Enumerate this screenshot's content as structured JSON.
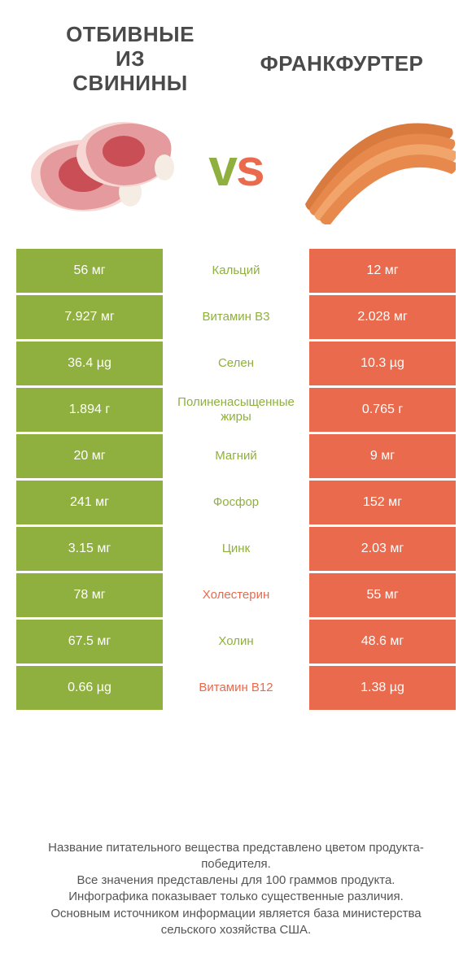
{
  "colors": {
    "green": "#8fb03e",
    "orange": "#e96a4c",
    "vs_green": "#8fb03e",
    "vs_orange": "#e96a4c",
    "pork_light": "#f6d7d4",
    "pork_pink": "#e59a9d",
    "pork_red": "#c94e55",
    "pork_bone": "#f5ede3",
    "sausage_light": "#f2a56a",
    "sausage_mid": "#e7894d",
    "sausage_dark": "#d97a3e"
  },
  "header": {
    "left_lines": [
      "ОТБИВНЫЕ",
      "ИЗ",
      "СВИНИНЫ"
    ],
    "right": "ФРАНКФУРТЕР"
  },
  "vs_label": "vs",
  "rows": [
    {
      "left": "56 мг",
      "mid": "Кальций",
      "right": "12 мг",
      "winner": "left"
    },
    {
      "left": "7.927 мг",
      "mid": "Витамин B3",
      "right": "2.028 мг",
      "winner": "left"
    },
    {
      "left": "36.4 µg",
      "mid": "Селен",
      "right": "10.3 µg",
      "winner": "left"
    },
    {
      "left": "1.894 г",
      "mid": "Полиненасыщенные жиры",
      "right": "0.765 г",
      "winner": "left"
    },
    {
      "left": "20 мг",
      "mid": "Магний",
      "right": "9 мг",
      "winner": "left"
    },
    {
      "left": "241 мг",
      "mid": "Фосфор",
      "right": "152 мг",
      "winner": "left"
    },
    {
      "left": "3.15 мг",
      "mid": "Цинк",
      "right": "2.03 мг",
      "winner": "left"
    },
    {
      "left": "78 мг",
      "mid": "Холестерин",
      "right": "55 мг",
      "winner": "right"
    },
    {
      "left": "67.5 мг",
      "mid": "Холин",
      "right": "48.6 мг",
      "winner": "left"
    },
    {
      "left": "0.66 µg",
      "mid": "Витамин B12",
      "right": "1.38 µg",
      "winner": "right"
    }
  ],
  "footer_lines": [
    "Название питательного вещества представлено цветом продукта-победителя.",
    "Все значения представлены для 100 граммов продукта.",
    "Инфографика показывает только существенные различия.",
    "Основным источником информации является база министерства сельского хозяйства США."
  ]
}
